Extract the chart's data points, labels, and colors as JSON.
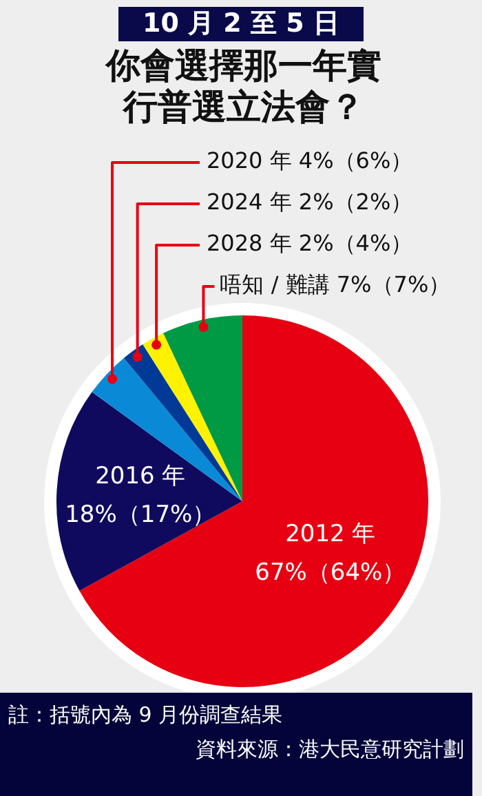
{
  "chart_data": {
    "type": "pie",
    "subtitle": "10 月 2 至 5 日",
    "title": "你會選擇那一年實行普選立法會？",
    "categories": [
      "2012 年",
      "2016 年",
      "2020 年",
      "2024 年",
      "2028 年",
      "唔知 / 難講"
    ],
    "values": [
      67,
      18,
      4,
      2,
      2,
      7
    ],
    "value_labels": [
      "67%（64%）",
      "18%（17%）",
      "4%（6%）",
      "2%（2%）",
      "2%（4%）",
      "7%（7%）"
    ],
    "colors": [
      "#e60012",
      "#100a5e",
      "#0a8ad6",
      "#003a96",
      "#fff200",
      "#009a44"
    ],
    "legend": false,
    "annotations": [
      "註：括號內為 9 月份調查結果",
      "資料來源：港大民意研究計劃"
    ]
  }
}
